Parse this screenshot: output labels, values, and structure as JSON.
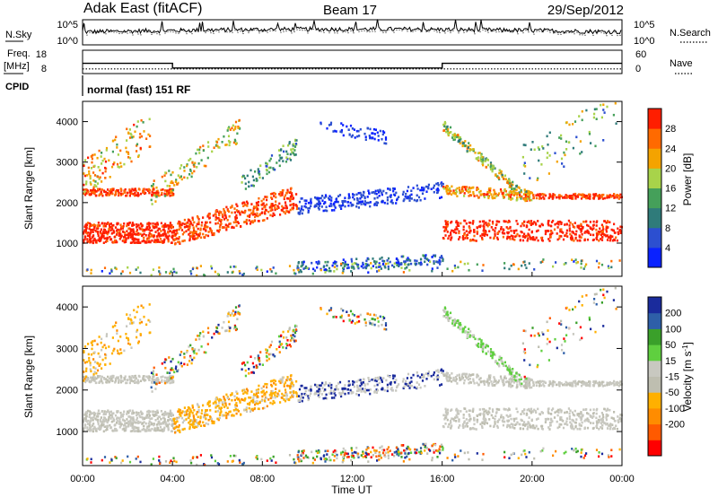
{
  "header": {
    "title": "Adak East (fitACF)",
    "beam": "Beam 17",
    "date": "29/Sep/2012"
  },
  "noise_panel": {
    "left_label": "N.Sky",
    "left_ticks": [
      "10^5",
      "10^0"
    ],
    "right_label": "N.Search",
    "right_ticks": [
      "10^5",
      "10^0"
    ]
  },
  "freq_panel": {
    "left_label_line1": "Freq.",
    "left_label_line2": "[MHz]",
    "left_ticks": [
      "18",
      "8"
    ],
    "right_label": "Nave",
    "right_ticks": [
      "60",
      "0"
    ]
  },
  "cpid_panel": {
    "label": "CPID",
    "text": "normal (fast) 151 RF"
  },
  "colors": {
    "power_scale": [
      "#0a22ff",
      "#2c4fd0",
      "#2f7b7a",
      "#45a05a",
      "#a8d34a",
      "#f4a300",
      "#ff6a00",
      "#ff1e00"
    ],
    "velocity_scale": [
      "#ff0000",
      "#ff5a00",
      "#ff8c00",
      "#ffb000",
      "#bebeb0",
      "#c8c8c0",
      "#5fcf3f",
      "#3aa02a",
      "#2e5fa8",
      "#1a2b9c"
    ]
  },
  "chart_data": [
    {
      "type": "line",
      "name": "noise",
      "ylim_labels": [
        "10^0",
        "10^5"
      ],
      "series": [
        {
          "name": "N.Sky",
          "style": "solid"
        },
        {
          "name": "N.Search",
          "style": "dotted"
        }
      ]
    },
    {
      "type": "line",
      "name": "frequency",
      "ylim": [
        8,
        18
      ],
      "series": [
        {
          "name": "Freq.",
          "style": "solid",
          "x": [
            "00:00",
            "04:00",
            "04:00",
            "16:00",
            "16:00",
            "24:00"
          ],
          "y": [
            12.4,
            12.4,
            10.4,
            10.4,
            12.4,
            12.4
          ]
        },
        {
          "name": "Nave",
          "style": "dotted",
          "y_const": 10
        }
      ]
    },
    {
      "type": "heatmap",
      "name": "power",
      "x_ticks": [
        "00:00",
        "04:00",
        "08:00",
        "12:00",
        "16:00",
        "20:00",
        "00:00"
      ],
      "xlim_hours": [
        0,
        24
      ],
      "ylabel": "Slant Range [km]",
      "y_ticks": [
        1000,
        2000,
        3000,
        4000
      ],
      "ylim": [
        180,
        4500
      ],
      "colorbar": {
        "label": "Power [dB]",
        "ticks": [
          4,
          8,
          12,
          16,
          20,
          24,
          28
        ],
        "range": [
          0,
          32
        ]
      }
    },
    {
      "type": "heatmap",
      "name": "velocity",
      "x_ticks": [
        "00:00",
        "04:00",
        "08:00",
        "12:00",
        "16:00",
        "20:00",
        "00:00"
      ],
      "xlim_hours": [
        0,
        24
      ],
      "xlabel": "Time UT",
      "ylabel": "Slant Range [km]",
      "y_ticks": [
        1000,
        2000,
        3000,
        4000
      ],
      "ylim": [
        180,
        4500
      ],
      "colorbar": {
        "label": "Velocity [m s^-1]",
        "ticks": [
          200,
          100,
          50,
          15,
          -15,
          -50,
          -100,
          -200
        ]
      }
    }
  ]
}
